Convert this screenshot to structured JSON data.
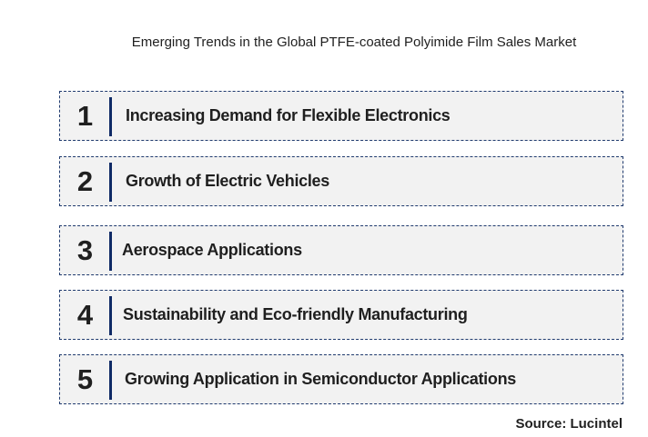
{
  "title": "Emerging Trends in the Global PTFE-coated Polyimide Film Sales Market",
  "trends": [
    {
      "number": "1",
      "label": "Increasing Demand for Flexible Electronics"
    },
    {
      "number": "2",
      "label": "Growth of Electric Vehicles"
    },
    {
      "number": "3",
      "label": "Aerospace Applications"
    },
    {
      "number": "4",
      "label": "Sustainability and Eco-friendly Manufacturing"
    },
    {
      "number": "5",
      "label": "Growing Application in Semiconductor Applications"
    }
  ],
  "source": "Source: Lucintel",
  "colors": {
    "accent_bar": "#0f2a66",
    "row_border": "#1f3a6e",
    "row_fill": "#f2f2f2",
    "text": "#1f1f1f"
  }
}
